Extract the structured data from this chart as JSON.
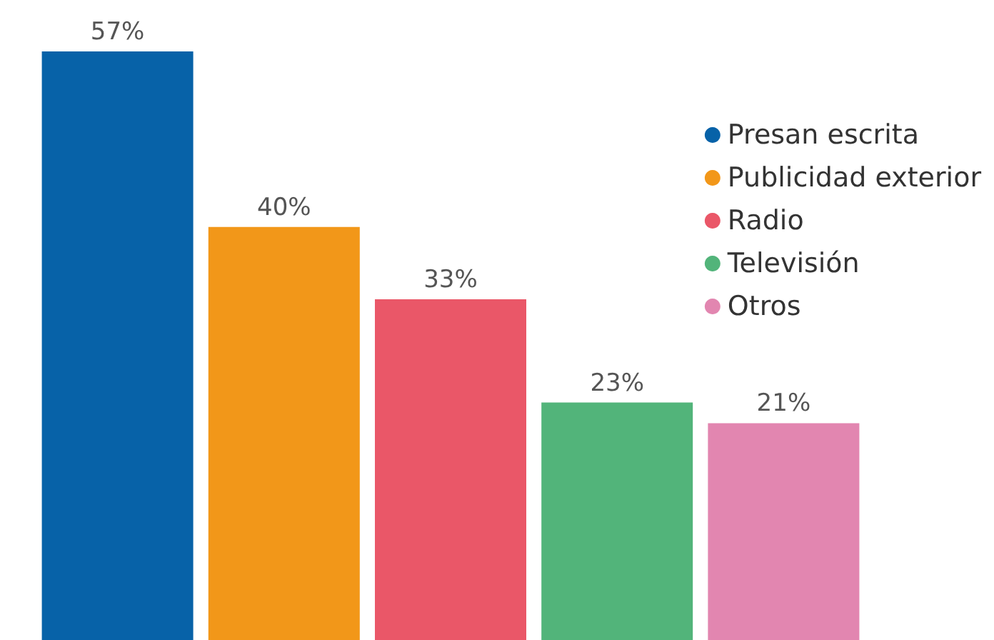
{
  "chart_data": {
    "type": "bar",
    "categories": [
      null
    ],
    "series": [
      {
        "name": "Presan escrita",
        "color": "#0762a8",
        "values": [
          57
        ],
        "value_labels": [
          "57%"
        ]
      },
      {
        "name": "Publicidad exterior",
        "color": "#f29719",
        "values": [
          40
        ],
        "value_labels": [
          "40%"
        ]
      },
      {
        "name": "Radio",
        "color": "#ea5768",
        "values": [
          33
        ],
        "value_labels": [
          "33%"
        ]
      },
      {
        "name": "Televisión",
        "color": "#52b47a",
        "values": [
          23
        ],
        "value_labels": [
          "23%"
        ]
      },
      {
        "name": "Otros",
        "color": "#e286b0",
        "values": [
          21
        ],
        "value_labels": [
          "21%"
        ]
      }
    ],
    "legend": "top right"
  }
}
